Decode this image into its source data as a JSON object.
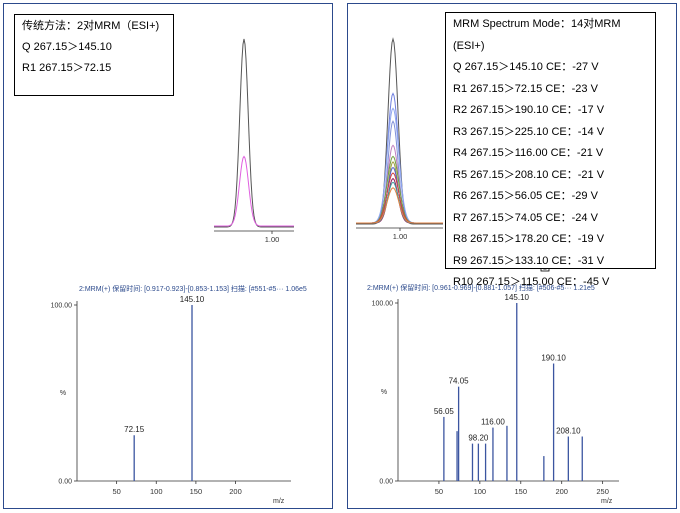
{
  "left_panel": {
    "info": {
      "title": "传统方法：2对MRM（ESI+)",
      "lines": [
        "Q 267.15＞145.10",
        "R1 267.15＞72.15"
      ]
    },
    "chrom_tick": "1.00",
    "spectrum_header": "2:MRM(+) 保留时间: [0.917-0.923]-[0.853-1.153] 扫描: [#551-#5··· 1.06e5"
  },
  "right_panel": {
    "info": {
      "title": "MRM  Spectrum  Mode：14对MRM",
      "title_cont": "(ESI+)",
      "lines": [
        "Q 267.15＞145.10 CE：-27 V",
        "R1 267.15＞72.15 CE：-23 V",
        "R2 267.15＞190.10 CE：-17 V",
        "R3 267.15＞225.10 CE：-14 V",
        "R4 267.15＞116.00 CE：-21 V",
        "R5 267.15＞208.10 CE：-21 V",
        "R6 267.15＞56.05 CE：-29 V",
        "R7 267.15＞74.05 CE：-24 V",
        "R8 267.15＞178.20 CE：-19 V",
        "R9 267.15＞133.10 CE：-31 V",
        "R10 267.15＞115.00 CE：-45 V"
      ]
    },
    "chrom_tick": "1.00",
    "badge": "2",
    "spectrum_header": "2:MRM(+) 保留时间: [0.961-0.969]-[0.881-1.057] 扫描: [#506-#5··· 1.21e5"
  },
  "chart_data": [
    {
      "type": "line",
      "panel": "left",
      "x_ticks": [
        "1.00"
      ],
      "series": [
        {
          "color": "#555555",
          "rel_height": 1.0
        },
        {
          "color": "#e060e0",
          "rel_height": 0.37
        }
      ]
    },
    {
      "type": "bar",
      "panel": "left",
      "xlabel": "m/z",
      "ylabel": "%",
      "xlim": [
        0,
        270
      ],
      "ylim": [
        0,
        100
      ],
      "x_ticks": [
        "50",
        "100",
        "150",
        "200"
      ],
      "y_ticks": [
        "0.00",
        "100.00"
      ],
      "peaks": [
        {
          "mz": 72.15,
          "intensity": 26,
          "label": "72.15"
        },
        {
          "mz": 145.1,
          "intensity": 100,
          "label": "145.10"
        }
      ]
    },
    {
      "type": "line",
      "panel": "right",
      "x_ticks": [
        "1.00"
      ],
      "series": [
        {
          "color": "#555555",
          "rel_height": 1.0
        },
        {
          "color": "#7080e0",
          "rel_height": 0.7
        },
        {
          "color": "#90a8f0",
          "rel_height": 0.62
        },
        {
          "color": "#8090d8",
          "rel_height": 0.55
        },
        {
          "color": "#c080c0",
          "rel_height": 0.42
        },
        {
          "color": "#70a040",
          "rel_height": 0.36
        },
        {
          "color": "#a0a040",
          "rel_height": 0.33
        },
        {
          "color": "#5060d0",
          "rel_height": 0.3
        },
        {
          "color": "#d04040",
          "rel_height": 0.27
        },
        {
          "color": "#902060",
          "rel_height": 0.24
        },
        {
          "color": "#40a0a0",
          "rel_height": 0.22
        },
        {
          "color": "#e08040",
          "rel_height": 0.19
        }
      ]
    },
    {
      "type": "bar",
      "panel": "right",
      "xlabel": "m/z",
      "ylabel": "%",
      "xlim": [
        0,
        270
      ],
      "ylim": [
        0,
        100
      ],
      "x_ticks": [
        "50",
        "100",
        "150",
        "200",
        "250"
      ],
      "y_ticks": [
        "0.00",
        "100.00"
      ],
      "peaks": [
        {
          "mz": 56.05,
          "intensity": 36,
          "label": "56.05"
        },
        {
          "mz": 72.15,
          "intensity": 28,
          "label": ""
        },
        {
          "mz": 74.05,
          "intensity": 53,
          "label": "74.05"
        },
        {
          "mz": 91.0,
          "intensity": 21,
          "label": ""
        },
        {
          "mz": 98.2,
          "intensity": 21,
          "label": "98.20"
        },
        {
          "mz": 107.0,
          "intensity": 21,
          "label": ""
        },
        {
          "mz": 116.0,
          "intensity": 30,
          "label": "116.00"
        },
        {
          "mz": 133.1,
          "intensity": 31,
          "label": ""
        },
        {
          "mz": 145.1,
          "intensity": 100,
          "label": "145.10"
        },
        {
          "mz": 178.2,
          "intensity": 14,
          "label": ""
        },
        {
          "mz": 190.1,
          "intensity": 66,
          "label": "190.10"
        },
        {
          "mz": 208.1,
          "intensity": 25,
          "label": "208.10"
        },
        {
          "mz": 225.1,
          "intensity": 25,
          "label": ""
        }
      ]
    }
  ]
}
